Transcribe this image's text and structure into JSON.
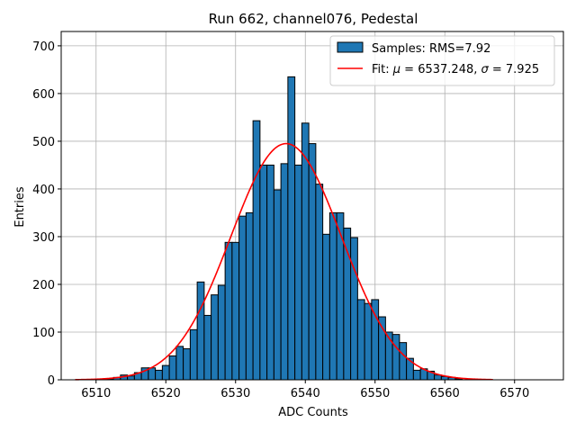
{
  "chart_data": {
    "type": "bar",
    "title": "Run 662, channel076, Pedestal",
    "xlabel": "ADC Counts",
    "ylabel": "Entries",
    "xlim": [
      6505,
      6577
    ],
    "ylim": [
      0,
      730
    ],
    "xticks": [
      6510,
      6520,
      6530,
      6540,
      6550,
      6560,
      6570
    ],
    "yticks": [
      0,
      100,
      200,
      300,
      400,
      500,
      600,
      700
    ],
    "grid": true,
    "legend_placement": "top-right",
    "bin_width": 1,
    "histogram": {
      "name": "Samples: RMS=7.92",
      "color": "#1f77b4",
      "edge_color": "#000000",
      "bin_centers": [
        6512,
        6513,
        6514,
        6515,
        6516,
        6517,
        6518,
        6519,
        6520,
        6521,
        6522,
        6523,
        6524,
        6525,
        6526,
        6527,
        6528,
        6529,
        6530,
        6531,
        6532,
        6533,
        6534,
        6535,
        6536,
        6537,
        6538,
        6539,
        6540,
        6541,
        6542,
        6543,
        6544,
        6545,
        6546,
        6547,
        6548,
        6549,
        6550,
        6551,
        6552,
        6553,
        6554,
        6555,
        6556,
        6557,
        6558,
        6559,
        6560,
        6561,
        6562
      ],
      "counts": [
        2,
        5,
        10,
        8,
        15,
        25,
        25,
        20,
        30,
        50,
        70,
        65,
        105,
        205,
        135,
        178,
        198,
        288,
        288,
        343,
        350,
        543,
        450,
        450,
        398,
        453,
        635,
        450,
        538,
        495,
        410,
        305,
        350,
        350,
        318,
        298,
        168,
        160,
        168,
        132,
        100,
        95,
        78,
        45,
        20,
        23,
        18,
        10,
        7,
        5,
        2
      ]
    },
    "fit": {
      "name_prefix": "Fit: ",
      "mu_symbol": "μ",
      "mu_text": " = 6537.248, ",
      "sigma_symbol": "σ",
      "sigma_text": " = 7.925",
      "color": "#ff0000",
      "mu": 6537.248,
      "sigma": 7.925,
      "amplitude": 495,
      "x_range": [
        6507,
        6567
      ]
    }
  }
}
